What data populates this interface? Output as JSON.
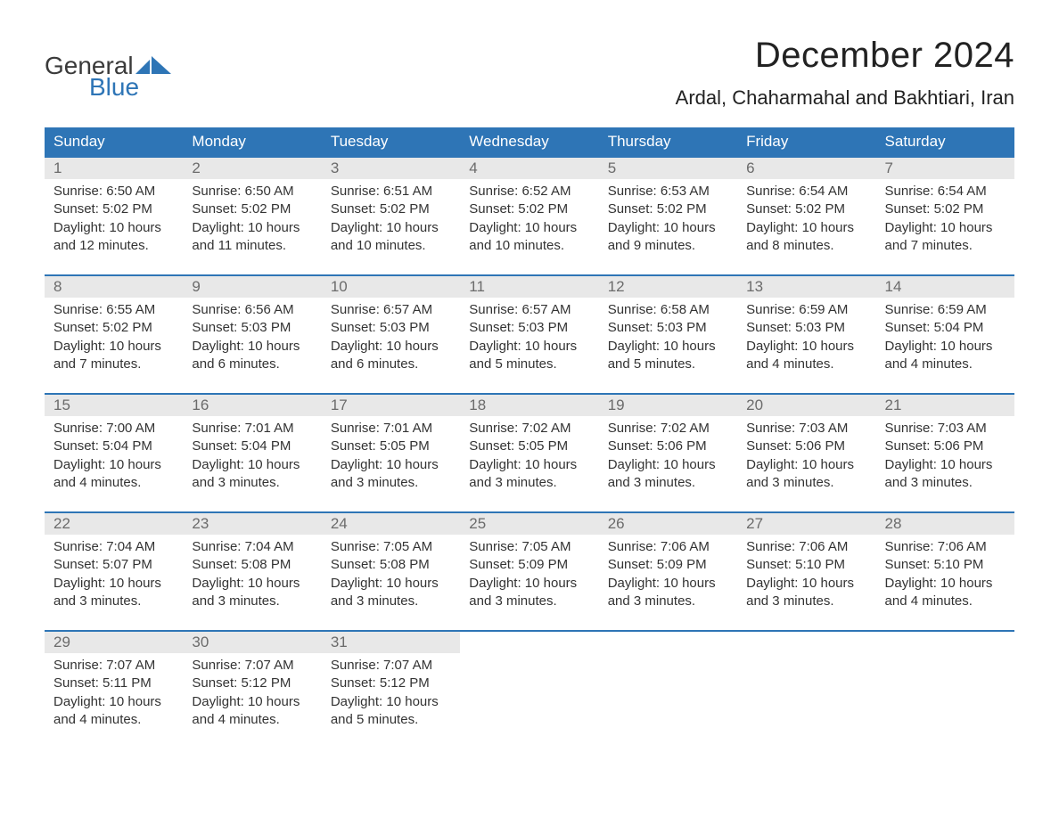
{
  "brand": {
    "part1": "General",
    "part2": "Blue",
    "mark_color": "#2e75b6",
    "text1_color": "#3a3a3a"
  },
  "title": "December 2024",
  "location": "Ardal, Chaharmahal and Bakhtiari, Iran",
  "colors": {
    "header_bg": "#2e75b6",
    "header_fg": "#ffffff",
    "daynum_bg": "#e8e8e8",
    "daynum_fg": "#6b6b6b",
    "row_border": "#2e75b6",
    "body_text": "#333333",
    "page_bg": "#ffffff"
  },
  "fonts": {
    "title_size": 40,
    "location_size": 22,
    "th_size": 17,
    "body_size": 15
  },
  "weekdays": [
    "Sunday",
    "Monday",
    "Tuesday",
    "Wednesday",
    "Thursday",
    "Friday",
    "Saturday"
  ],
  "first_weekday_index": 0,
  "days": [
    {
      "n": 1,
      "sunrise": "6:50 AM",
      "sunset": "5:02 PM",
      "daylight": "10 hours and 12 minutes."
    },
    {
      "n": 2,
      "sunrise": "6:50 AM",
      "sunset": "5:02 PM",
      "daylight": "10 hours and 11 minutes."
    },
    {
      "n": 3,
      "sunrise": "6:51 AM",
      "sunset": "5:02 PM",
      "daylight": "10 hours and 10 minutes."
    },
    {
      "n": 4,
      "sunrise": "6:52 AM",
      "sunset": "5:02 PM",
      "daylight": "10 hours and 10 minutes."
    },
    {
      "n": 5,
      "sunrise": "6:53 AM",
      "sunset": "5:02 PM",
      "daylight": "10 hours and 9 minutes."
    },
    {
      "n": 6,
      "sunrise": "6:54 AM",
      "sunset": "5:02 PM",
      "daylight": "10 hours and 8 minutes."
    },
    {
      "n": 7,
      "sunrise": "6:54 AM",
      "sunset": "5:02 PM",
      "daylight": "10 hours and 7 minutes."
    },
    {
      "n": 8,
      "sunrise": "6:55 AM",
      "sunset": "5:02 PM",
      "daylight": "10 hours and 7 minutes."
    },
    {
      "n": 9,
      "sunrise": "6:56 AM",
      "sunset": "5:03 PM",
      "daylight": "10 hours and 6 minutes."
    },
    {
      "n": 10,
      "sunrise": "6:57 AM",
      "sunset": "5:03 PM",
      "daylight": "10 hours and 6 minutes."
    },
    {
      "n": 11,
      "sunrise": "6:57 AM",
      "sunset": "5:03 PM",
      "daylight": "10 hours and 5 minutes."
    },
    {
      "n": 12,
      "sunrise": "6:58 AM",
      "sunset": "5:03 PM",
      "daylight": "10 hours and 5 minutes."
    },
    {
      "n": 13,
      "sunrise": "6:59 AM",
      "sunset": "5:03 PM",
      "daylight": "10 hours and 4 minutes."
    },
    {
      "n": 14,
      "sunrise": "6:59 AM",
      "sunset": "5:04 PM",
      "daylight": "10 hours and 4 minutes."
    },
    {
      "n": 15,
      "sunrise": "7:00 AM",
      "sunset": "5:04 PM",
      "daylight": "10 hours and 4 minutes."
    },
    {
      "n": 16,
      "sunrise": "7:01 AM",
      "sunset": "5:04 PM",
      "daylight": "10 hours and 3 minutes."
    },
    {
      "n": 17,
      "sunrise": "7:01 AM",
      "sunset": "5:05 PM",
      "daylight": "10 hours and 3 minutes."
    },
    {
      "n": 18,
      "sunrise": "7:02 AM",
      "sunset": "5:05 PM",
      "daylight": "10 hours and 3 minutes."
    },
    {
      "n": 19,
      "sunrise": "7:02 AM",
      "sunset": "5:06 PM",
      "daylight": "10 hours and 3 minutes."
    },
    {
      "n": 20,
      "sunrise": "7:03 AM",
      "sunset": "5:06 PM",
      "daylight": "10 hours and 3 minutes."
    },
    {
      "n": 21,
      "sunrise": "7:03 AM",
      "sunset": "5:06 PM",
      "daylight": "10 hours and 3 minutes."
    },
    {
      "n": 22,
      "sunrise": "7:04 AM",
      "sunset": "5:07 PM",
      "daylight": "10 hours and 3 minutes."
    },
    {
      "n": 23,
      "sunrise": "7:04 AM",
      "sunset": "5:08 PM",
      "daylight": "10 hours and 3 minutes."
    },
    {
      "n": 24,
      "sunrise": "7:05 AM",
      "sunset": "5:08 PM",
      "daylight": "10 hours and 3 minutes."
    },
    {
      "n": 25,
      "sunrise": "7:05 AM",
      "sunset": "5:09 PM",
      "daylight": "10 hours and 3 minutes."
    },
    {
      "n": 26,
      "sunrise": "7:06 AM",
      "sunset": "5:09 PM",
      "daylight": "10 hours and 3 minutes."
    },
    {
      "n": 27,
      "sunrise": "7:06 AM",
      "sunset": "5:10 PM",
      "daylight": "10 hours and 3 minutes."
    },
    {
      "n": 28,
      "sunrise": "7:06 AM",
      "sunset": "5:10 PM",
      "daylight": "10 hours and 4 minutes."
    },
    {
      "n": 29,
      "sunrise": "7:07 AM",
      "sunset": "5:11 PM",
      "daylight": "10 hours and 4 minutes."
    },
    {
      "n": 30,
      "sunrise": "7:07 AM",
      "sunset": "5:12 PM",
      "daylight": "10 hours and 4 minutes."
    },
    {
      "n": 31,
      "sunrise": "7:07 AM",
      "sunset": "5:12 PM",
      "daylight": "10 hours and 5 minutes."
    }
  ],
  "labels": {
    "sunrise": "Sunrise:",
    "sunset": "Sunset:",
    "daylight": "Daylight:"
  }
}
